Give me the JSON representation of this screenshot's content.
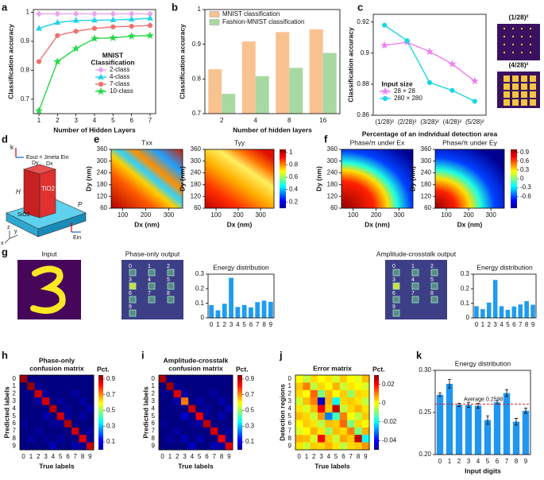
{
  "chart_data": [
    {
      "label": "a",
      "type": "line",
      "xlabel": "Number of Hidden Layers",
      "ylabel": "Classification accuracy",
      "x": [
        1,
        2,
        3,
        4,
        5,
        6,
        7
      ],
      "xlim": [
        0.7,
        7.3
      ],
      "xticks": [
        1,
        2,
        3,
        4,
        5,
        6,
        7
      ],
      "ylim": [
        0.65,
        1.01
      ],
      "yticks": [
        0.7,
        0.8,
        0.9,
        1
      ],
      "legend_title": [
        "MNIST",
        "Classification"
      ],
      "series": [
        {
          "name": "2-class",
          "color": "#e9a3ec",
          "marker": "diamond",
          "values": [
            0.995,
            0.995,
            0.995,
            0.995,
            0.995,
            0.995,
            0.995
          ]
        },
        {
          "name": "4-class",
          "color": "#1fd3e8",
          "marker": "triangle",
          "values": [
            0.945,
            0.965,
            0.972,
            0.973,
            0.974,
            0.976,
            0.98
          ]
        },
        {
          "name": "7-class",
          "color": "#f0706e",
          "marker": "circle",
          "values": [
            0.83,
            0.92,
            0.935,
            0.945,
            0.95,
            0.952,
            0.955
          ]
        },
        {
          "name": "10-class",
          "color": "#25d848",
          "marker": "star",
          "values": [
            0.66,
            0.83,
            0.875,
            0.91,
            0.912,
            0.918,
            0.92
          ]
        }
      ]
    },
    {
      "label": "b",
      "type": "bar",
      "xlabel": "Number of hidden layers",
      "ylabel": "Classification accuracy",
      "categories": [
        "2",
        "4",
        "8",
        "16"
      ],
      "ylim": [
        0.7,
        1
      ],
      "yticks": [
        0.7,
        0.8,
        0.9,
        1
      ],
      "series": [
        {
          "name": "MNIST classification",
          "color": "#f9c291",
          "values": [
            0.828,
            0.908,
            0.935,
            0.943
          ]
        },
        {
          "name": "Fashion-MNIST classification",
          "color": "#a9d9a2",
          "values": [
            0.757,
            0.808,
            0.832,
            0.875
          ]
        }
      ]
    },
    {
      "label": "c",
      "type": "line",
      "xlabel": "Percentage of  an individual detection area",
      "ylabel": "Classification accuracy",
      "categories": [
        "(1/28)²",
        "(2/28)²",
        "(3/28)²",
        "(4/28)²",
        "(5/28)²"
      ],
      "ylim": [
        0.86,
        0.925
      ],
      "yticks": [
        0.86,
        0.88,
        0.9,
        0.92
      ],
      "legend_title": [
        "Input size"
      ],
      "insets": [
        "(1/28)²",
        "(4/28)²"
      ],
      "series": [
        {
          "name": "28 × 28",
          "color": "#ee7ef0",
          "marker": "star",
          "values": [
            0.905,
            0.907,
            0.901,
            0.893,
            0.882
          ]
        },
        {
          "name": "280 × 280",
          "color": "#1ad6e4",
          "marker": "circle",
          "values": [
            0.918,
            0.908,
            0.881,
            0.876,
            0.869
          ]
        }
      ]
    },
    {
      "label": "e",
      "type": "field",
      "title": "Txx",
      "xlabel": "Dx (nm)",
      "ylabel": "Dy (nm)",
      "xlim": [
        50,
        360
      ],
      "xticks": [
        100,
        200,
        300
      ],
      "ylim": [
        60,
        360
      ],
      "yticks": [
        60,
        120,
        180,
        240,
        300,
        360
      ]
    },
    {
      "type": "field",
      "title": "Tyy",
      "xlabel": "Dx (nm)",
      "ylabel": "Dy (nm)",
      "xlim": [
        50,
        360
      ],
      "xticks": [
        100,
        200,
        300
      ],
      "ylim": [
        60,
        360
      ],
      "yticks": [
        60,
        120,
        180,
        240,
        300,
        360
      ],
      "zlim": [
        0.1,
        1.05
      ],
      "zticks": [
        0.2,
        0.4,
        0.6,
        0.8,
        1
      ]
    },
    {
      "label": "f",
      "type": "field",
      "title": "Phase/π under Ex",
      "xlabel": "Dx (nm)",
      "ylabel": "Dy (nm)",
      "xlim": [
        50,
        360
      ],
      "xticks": [
        100,
        200,
        300
      ],
      "ylim": [
        60,
        360
      ],
      "yticks": [
        60,
        120,
        180,
        240,
        300,
        360
      ]
    },
    {
      "type": "field",
      "title": "Phase/π under Ey",
      "xlabel": "Dx (nm)",
      "ylabel": "Dy (nm)",
      "xlim": [
        50,
        360
      ],
      "xticks": [
        100,
        200,
        300
      ],
      "ylim": [
        60,
        360
      ],
      "yticks": [
        60,
        120,
        180,
        240,
        300,
        360
      ],
      "zlim": [
        -1,
        1
      ],
      "zticks": [
        -0.6,
        -0.3,
        0,
        0.3,
        0.6,
        0.9
      ]
    },
    {
      "type": "bar",
      "title": "Energy distribution",
      "categories": [
        "0",
        "1",
        "2",
        "3",
        "4",
        "5",
        "6",
        "7",
        "8",
        "9"
      ],
      "color": "#1f9cf0",
      "ylim": [
        0,
        0.3
      ],
      "yticks": [
        0,
        0.1,
        0.2,
        0.3
      ],
      "values": [
        0.088,
        0.052,
        0.097,
        0.275,
        0.075,
        0.088,
        0.072,
        0.108,
        0.118,
        0.11
      ]
    },
    {
      "type": "bar",
      "title": "Energy distribution",
      "categories": [
        "0",
        "1",
        "2",
        "3",
        "4",
        "5",
        "6",
        "7",
        "8",
        "9"
      ],
      "color": "#1f9cf0",
      "ylim": [
        0,
        0.3
      ],
      "yticks": [
        0,
        0.1,
        0.2,
        0.3
      ],
      "values": [
        0.08,
        0.06,
        0.105,
        0.26,
        0.08,
        0.055,
        0.078,
        0.092,
        0.115,
        0.09
      ]
    },
    {
      "label": "h",
      "type": "heatmap",
      "title": [
        "Phase-only",
        "confusion matrix"
      ],
      "xlabel": "True labels",
      "ylabel": "Predicted labels",
      "categories": [
        "0",
        "1",
        "2",
        "3",
        "4",
        "5",
        "6",
        "7",
        "8",
        "9"
      ],
      "zlim": [
        0,
        0.95
      ],
      "zticks": [
        0.1,
        0.3,
        0.5,
        0.7,
        0.9
      ],
      "ztitle": "Pct.",
      "z": [
        [
          0.92,
          0,
          0,
          0,
          0,
          0,
          0,
          0,
          0,
          0
        ],
        [
          0,
          0.93,
          0.02,
          0,
          0,
          0,
          0,
          0,
          0,
          0
        ],
        [
          0.01,
          0,
          0.88,
          0.02,
          0,
          0,
          0,
          0.03,
          0,
          0
        ],
        [
          0,
          0,
          0.03,
          0.87,
          0,
          0.03,
          0,
          0,
          0.03,
          0
        ],
        [
          0,
          0,
          0,
          0,
          0.9,
          0,
          0.02,
          0,
          0,
          0.04
        ],
        [
          0,
          0,
          0,
          0.04,
          0,
          0.87,
          0.02,
          0,
          0.03,
          0
        ],
        [
          0.02,
          0,
          0,
          0,
          0.02,
          0.02,
          0.9,
          0,
          0,
          0
        ],
        [
          0,
          0,
          0.03,
          0,
          0,
          0,
          0,
          0.88,
          0,
          0.03
        ],
        [
          0,
          0.03,
          0,
          0.02,
          0,
          0.03,
          0,
          0,
          0.86,
          0.02
        ],
        [
          0,
          0,
          0,
          0,
          0.05,
          0,
          0,
          0.04,
          0.02,
          0.88
        ]
      ]
    },
    {
      "label": "i",
      "type": "heatmap",
      "title": [
        "Amplitude-crosstalk",
        "confusion matrix"
      ],
      "xlabel": "True labels",
      "ylabel": "Predicted labels",
      "categories": [
        "0",
        "1",
        "2",
        "3",
        "4",
        "5",
        "6",
        "7",
        "8",
        "9"
      ],
      "zlim": [
        0,
        0.95
      ],
      "zticks": [
        0.1,
        0.3,
        0.5,
        0.7,
        0.9
      ],
      "ztitle": "Pct.",
      "z": [
        [
          0.91,
          0,
          0,
          0,
          0,
          0,
          0,
          0,
          0,
          0
        ],
        [
          0,
          0.92,
          0.02,
          0,
          0,
          0,
          0,
          0,
          0,
          0
        ],
        [
          0.01,
          0,
          0.86,
          0.03,
          0,
          0,
          0,
          0.03,
          0,
          0
        ],
        [
          0,
          0,
          0.04,
          0.72,
          0,
          0.04,
          0,
          0,
          0.04,
          0
        ],
        [
          0,
          0,
          0,
          0,
          0.88,
          0,
          0.03,
          0,
          0,
          0.05
        ],
        [
          0,
          0,
          0,
          0.07,
          0,
          0.84,
          0.02,
          0,
          0.04,
          0
        ],
        [
          0.02,
          0,
          0,
          0,
          0.02,
          0.03,
          0.89,
          0,
          0,
          0
        ],
        [
          0,
          0,
          0.03,
          0,
          0,
          0,
          0,
          0.87,
          0,
          0.03
        ],
        [
          0,
          0.03,
          0,
          0.05,
          0,
          0.04,
          0,
          0,
          0.84,
          0.02
        ],
        [
          0,
          0,
          0,
          0,
          0.06,
          0,
          0,
          0.05,
          0.03,
          0.86
        ]
      ]
    },
    {
      "label": "j",
      "type": "heatmap",
      "title": [
        "Error matrix"
      ],
      "xlabel": "True labels",
      "ylabel": "Detection regions",
      "categories": [
        "0",
        "1",
        "2",
        "3",
        "4",
        "5",
        "6",
        "7",
        "8",
        "9"
      ],
      "zlim": [
        -0.05,
        0.03
      ],
      "zticks": [
        -0.04,
        -0.02,
        0,
        0.02
      ],
      "ztitle": "Pct.",
      "z": [
        [
          0,
          -0.005,
          0.003,
          0,
          0.002,
          -0.003,
          0.004,
          0,
          -0.002,
          0.005
        ],
        [
          0.004,
          0.01,
          -0.005,
          0.003,
          0,
          0.006,
          -0.004,
          0.002,
          0,
          -0.003
        ],
        [
          0.003,
          0,
          0.012,
          -0.01,
          0.005,
          0,
          0.004,
          -0.008,
          0.003,
          0.002
        ],
        [
          -0.004,
          0.005,
          0.01,
          -0.045,
          0.006,
          -0.02,
          0.003,
          0.004,
          0.002,
          -0.005
        ],
        [
          0.002,
          -0.003,
          0.005,
          0.02,
          0.004,
          0.025,
          -0.005,
          0.003,
          0.006,
          0.002
        ],
        [
          0.005,
          0.003,
          -0.004,
          0.008,
          -0.03,
          -0.015,
          0.01,
          0,
          -0.005,
          0.004
        ],
        [
          0,
          0.004,
          0.002,
          -0.006,
          0.005,
          0.004,
          0.012,
          -0.01,
          0.003,
          0
        ],
        [
          -0.003,
          0,
          0.006,
          0.002,
          -0.008,
          0.005,
          0.003,
          0.01,
          -0.01,
          0.006
        ],
        [
          0.006,
          0.005,
          -0.003,
          0.02,
          0.004,
          -0.004,
          0.007,
          0.004,
          0.025,
          -0.02
        ],
        [
          0.002,
          -0.004,
          0.004,
          0.003,
          0.006,
          0.002,
          -0.005,
          0.003,
          0.004,
          0.008
        ]
      ]
    },
    {
      "label": "k",
      "type": "bar",
      "title": "Energy distribution",
      "xlabel": "Input digits",
      "categories": [
        "0",
        "1",
        "2",
        "3",
        "4",
        "5",
        "6",
        "7",
        "8",
        "9"
      ],
      "color": "#2196f0",
      "ylim": [
        0.2,
        0.3
      ],
      "yticks": [
        {
          "value": 0.2,
          "label": "0.20"
        },
        {
          "value": 0.25,
          "label": "0.25"
        },
        {
          "value": 0.3,
          "label": "0.30"
        }
      ],
      "values": [
        0.271,
        0.284,
        0.259,
        0.259,
        0.258,
        0.241,
        0.262,
        0.273,
        0.239,
        0.252
      ],
      "errors": [
        0.002,
        0.005,
        0.002,
        0.003,
        0.003,
        0.005,
        0.002,
        0.004,
        0.004,
        0.003
      ],
      "reference": {
        "value": 0.2598,
        "label": "Average 0.2598"
      }
    }
  ],
  "diagram_d": {
    "label": "d",
    "k": "k",
    "equation": "Eout = Jmeta Ein",
    "dy": "Dy",
    "dx": "Dx",
    "pillar": "TiO2",
    "height": "H",
    "substrate": "SiO2",
    "period": "P",
    "ein": "Ein",
    "x": "x",
    "y": "y",
    "z": "z"
  },
  "panel_g": {
    "label": "g",
    "input": "Input",
    "phase": "Phase-only output",
    "amplitude": "Amplitude-crosstalk output",
    "detectors": [
      "0",
      "1",
      "2",
      "3",
      "4",
      "5",
      "6",
      "7",
      "8",
      "9"
    ]
  }
}
